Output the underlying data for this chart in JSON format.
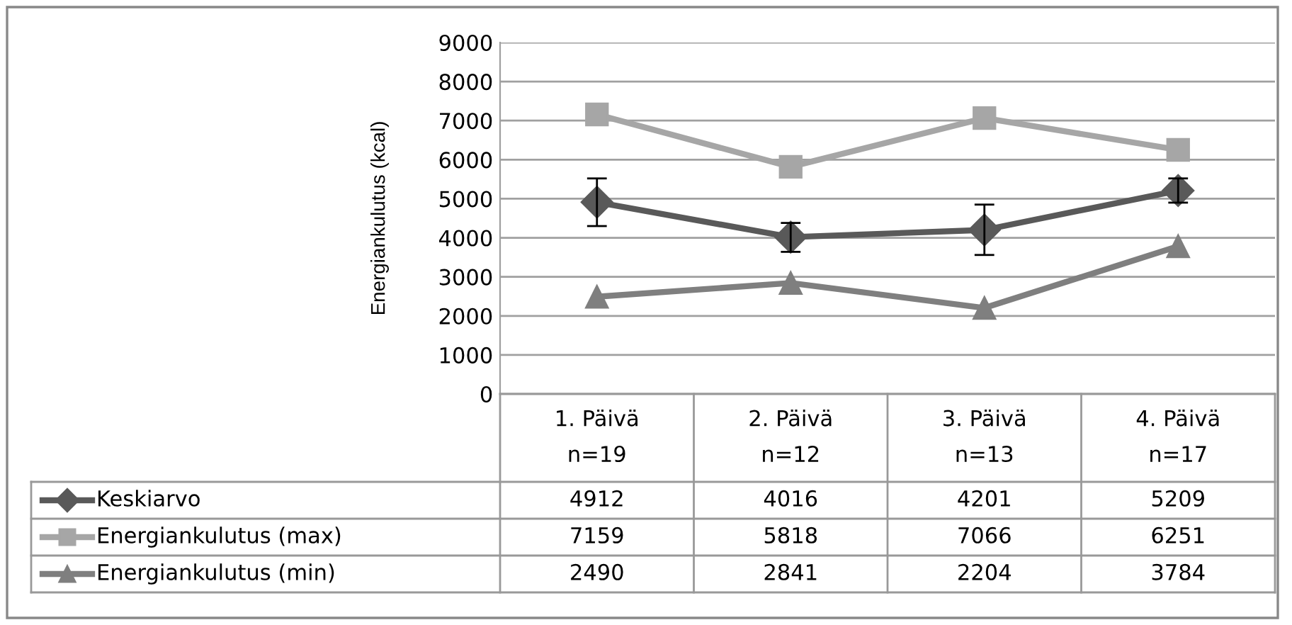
{
  "chart_data": {
    "type": "line",
    "ylabel": "Energiankulutus (kcal)",
    "categories": [
      "1. Päivä\nn=19",
      "2. Päivä\nn=12",
      "3. Päivä\nn=13",
      "4. Päivä\nn=17"
    ],
    "series": [
      {
        "name": "Keskiarvo",
        "color": "#595959",
        "marker": "diamond",
        "values": [
          4912,
          4016,
          4201,
          5209
        ],
        "errors": [
          [
            4300,
            5520
          ],
          [
            3640,
            4380
          ],
          [
            3560,
            4850
          ],
          [
            4900,
            5520
          ]
        ]
      },
      {
        "name": "Energiankulutus (max)",
        "color": "#a6a6a6",
        "marker": "square",
        "values": [
          7159,
          5818,
          7066,
          6251
        ]
      },
      {
        "name": "Energiankulutus (min)",
        "color": "#7f7f7f",
        "marker": "triangle",
        "values": [
          2490,
          2841,
          2204,
          3784
        ]
      }
    ],
    "ylim": [
      0,
      9000
    ],
    "yticks": [
      0,
      1000,
      2000,
      3000,
      4000,
      5000,
      6000,
      7000,
      8000,
      9000
    ],
    "grid": "y",
    "legend": "bottom",
    "data_labels": true,
    "line_style": "solid"
  }
}
